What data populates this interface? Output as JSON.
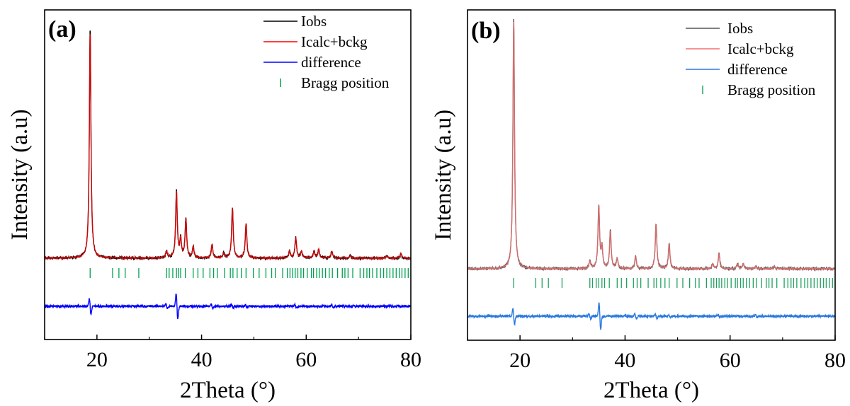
{
  "chart_data": [
    {
      "type": "line",
      "panel_label": "(a)",
      "xlabel": "2Theta (°)",
      "ylabel": "Intensity (a.u)",
      "xlim": [
        10,
        80
      ],
      "xticks": [
        20,
        40,
        60,
        80
      ],
      "y_scale": "arbitrary units, no tick labels",
      "grid": false,
      "legend_position": "top-right",
      "series": [
        {
          "name": "Iobs",
          "color": "#000000"
        },
        {
          "name": "Icalc+bckg",
          "color": "#ff0000"
        },
        {
          "name": "difference",
          "color": "#0000ff"
        },
        {
          "name": "Bragg position",
          "color": "#00a050",
          "marker": "vertical-tick"
        }
      ],
      "baseline_intensity": 0.1,
      "peaks": [
        {
          "x": 18.7,
          "intensity": 1.0
        },
        {
          "x": 33.3,
          "intensity": 0.03
        },
        {
          "x": 35.2,
          "intensity": 0.29
        },
        {
          "x": 36.0,
          "intensity": 0.08
        },
        {
          "x": 37.0,
          "intensity": 0.17
        },
        {
          "x": 38.4,
          "intensity": 0.05
        },
        {
          "x": 42.0,
          "intensity": 0.06
        },
        {
          "x": 44.2,
          "intensity": 0.02
        },
        {
          "x": 45.9,
          "intensity": 0.22
        },
        {
          "x": 48.5,
          "intensity": 0.15
        },
        {
          "x": 56.8,
          "intensity": 0.03
        },
        {
          "x": 58.0,
          "intensity": 0.09
        },
        {
          "x": 59.1,
          "intensity": 0.03
        },
        {
          "x": 61.5,
          "intensity": 0.03
        },
        {
          "x": 62.4,
          "intensity": 0.04
        },
        {
          "x": 64.9,
          "intensity": 0.03
        },
        {
          "x": 68.4,
          "intensity": 0.01
        },
        {
          "x": 75.4,
          "intensity": 0.01
        },
        {
          "x": 78.1,
          "intensity": 0.02
        }
      ],
      "difference_features": [
        {
          "x": 18.7,
          "amplitude": 0.22
        },
        {
          "x": 33.3,
          "amplitude": 0.06
        },
        {
          "x": 35.3,
          "amplitude": 0.35
        },
        {
          "x": 42.0,
          "amplitude": 0.06
        },
        {
          "x": 45.9,
          "amplitude": 0.06
        },
        {
          "x": 48.5,
          "amplitude": 0.04
        },
        {
          "x": 58.0,
          "amplitude": 0.04
        },
        {
          "x": 65.0,
          "amplitude": 0.04
        }
      ],
      "bragg_positions": [
        18.7,
        23.0,
        24.2,
        25.4,
        28.0,
        33.3,
        33.8,
        34.5,
        35.2,
        35.6,
        36.0,
        36.9,
        38.4,
        39.3,
        40.3,
        41.6,
        42.3,
        43.0,
        44.4,
        45.5,
        46.0,
        46.8,
        47.6,
        48.5,
        49.9,
        51.0,
        52.3,
        53.4,
        54.1,
        55.5,
        56.4,
        56.9,
        57.4,
        57.9,
        58.4,
        59.0,
        59.5,
        60.2,
        61.0,
        61.4,
        62.0,
        62.5,
        63.1,
        63.7,
        64.4,
        65.0,
        66.0,
        66.9,
        67.4,
        68.0,
        68.9,
        70.3,
        71.0,
        71.6,
        72.1,
        72.7,
        73.5,
        74.2,
        74.8,
        75.4,
        76.0,
        76.6,
        77.2,
        77.8,
        78.3,
        78.9,
        79.5
      ]
    },
    {
      "type": "line",
      "panel_label": "(b)",
      "xlabel": "2Theta (°)",
      "ylabel": "Intensity (a.u)",
      "xlim": [
        10,
        80
      ],
      "xticks": [
        20,
        40,
        60,
        80
      ],
      "y_scale": "arbitrary units, no tick labels",
      "grid": false,
      "legend_position": "top-right",
      "series": [
        {
          "name": "Iobs",
          "color": "#555555"
        },
        {
          "name": "Icalc+bckg",
          "color": "#f07070"
        },
        {
          "name": "difference",
          "color": "#2878e0"
        },
        {
          "name": "Bragg position",
          "color": "#20a060",
          "marker": "vertical-tick"
        }
      ],
      "baseline_intensity": 0.08,
      "peaks": [
        {
          "x": 18.8,
          "intensity": 1.0
        },
        {
          "x": 33.3,
          "intensity": 0.03
        },
        {
          "x": 35.0,
          "intensity": 0.25
        },
        {
          "x": 35.6,
          "intensity": 0.08
        },
        {
          "x": 37.2,
          "intensity": 0.15
        },
        {
          "x": 38.5,
          "intensity": 0.04
        },
        {
          "x": 42.0,
          "intensity": 0.05
        },
        {
          "x": 45.9,
          "intensity": 0.18
        },
        {
          "x": 48.4,
          "intensity": 0.1
        },
        {
          "x": 56.7,
          "intensity": 0.02
        },
        {
          "x": 57.9,
          "intensity": 0.06
        },
        {
          "x": 61.4,
          "intensity": 0.02
        },
        {
          "x": 62.5,
          "intensity": 0.02
        },
        {
          "x": 64.9,
          "intensity": 0.01
        },
        {
          "x": 68.4,
          "intensity": 0.01
        }
      ],
      "difference_features": [
        {
          "x": 18.8,
          "amplitude": 0.22
        },
        {
          "x": 33.3,
          "amplitude": 0.07
        },
        {
          "x": 35.2,
          "amplitude": 0.36
        },
        {
          "x": 42.0,
          "amplitude": 0.07
        },
        {
          "x": 45.9,
          "amplitude": 0.07
        },
        {
          "x": 48.4,
          "amplitude": 0.03
        },
        {
          "x": 57.9,
          "amplitude": 0.03
        },
        {
          "x": 65.0,
          "amplitude": 0.03
        }
      ],
      "bragg_positions": [
        18.8,
        23.0,
        24.2,
        25.4,
        28.0,
        33.3,
        33.8,
        34.5,
        35.0,
        35.6,
        36.1,
        37.0,
        38.5,
        39.3,
        40.3,
        41.6,
        42.3,
        43.0,
        44.4,
        45.5,
        46.0,
        46.8,
        47.6,
        48.4,
        49.9,
        51.0,
        52.3,
        53.4,
        54.1,
        55.5,
        56.4,
        56.9,
        57.4,
        57.9,
        58.4,
        59.0,
        59.5,
        60.2,
        61.0,
        61.4,
        62.0,
        62.5,
        63.1,
        63.7,
        64.4,
        65.0,
        66.0,
        66.9,
        67.4,
        68.0,
        68.9,
        70.3,
        71.0,
        71.6,
        72.1,
        72.7,
        73.5,
        74.2,
        74.8,
        75.4,
        76.0,
        76.6,
        77.2,
        77.8,
        78.3,
        78.9,
        79.5
      ]
    }
  ]
}
